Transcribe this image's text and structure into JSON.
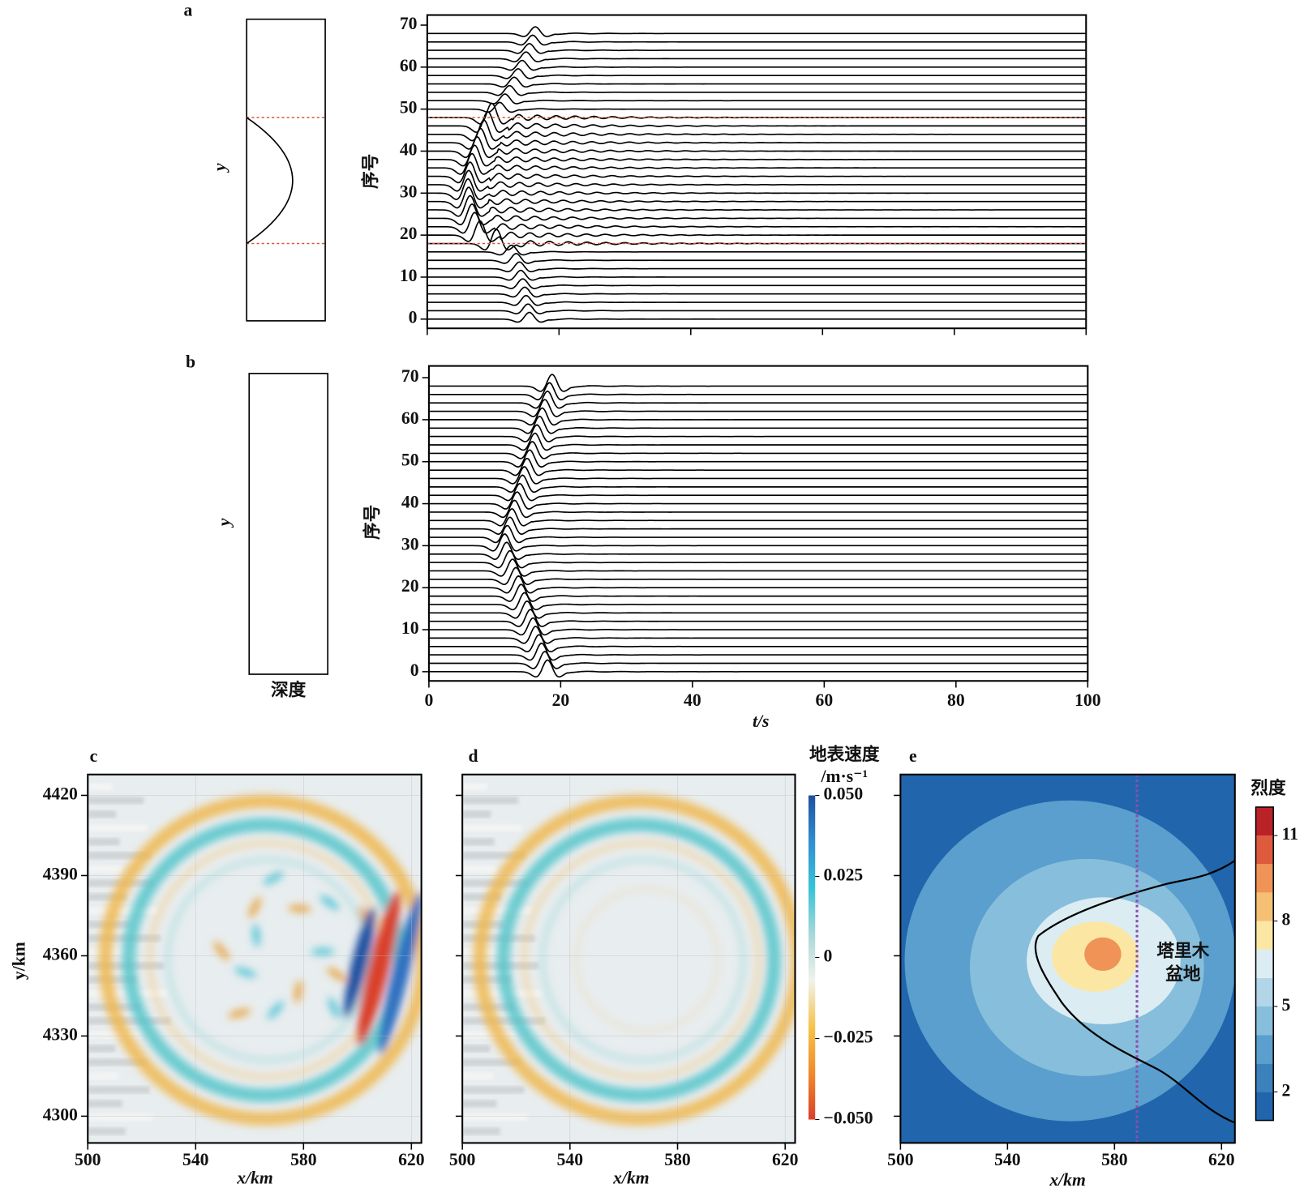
{
  "chart_data": [
    {
      "type": "waveform",
      "panel_label": "a",
      "ylabel": "序号",
      "model_label": "y",
      "model": "basin",
      "xlim": [
        0,
        100
      ],
      "xticks": [
        0,
        20,
        40,
        60,
        80,
        100
      ],
      "show_xtick_labels": false,
      "ylim": [
        -2.2,
        72.4
      ],
      "yticks": [
        0,
        10,
        20,
        30,
        40,
        50,
        60,
        70
      ],
      "hlines": [
        48,
        18
      ],
      "hline_color": "#d9533a",
      "line_color": "#000000",
      "traces": {
        "offsets": [
          0,
          2,
          4,
          6,
          8,
          10,
          12,
          14,
          16,
          18,
          20,
          22,
          24,
          26,
          28,
          30,
          32,
          34,
          36,
          38,
          40,
          42,
          44,
          46,
          48,
          50,
          52,
          54,
          56,
          58,
          60,
          62,
          64,
          66,
          68
        ],
        "arrivals": [
          15.5,
          15.3,
          15.0,
          14.8,
          14.5,
          14.2,
          14.0,
          13.5,
          12.8,
          10.5,
          8.0,
          7.2,
          6.8,
          6.5,
          6.3,
          6.2,
          6.3,
          6.5,
          6.8,
          7.2,
          7.6,
          8.1,
          8.6,
          9.2,
          9.8,
          11.0,
          11.8,
          12.5,
          13.2,
          13.8,
          14.4,
          15.0,
          15.5,
          16.0,
          16.4
        ]
      }
    },
    {
      "type": "waveform",
      "panel_label": "b",
      "ylabel": "序号",
      "model_label": "y",
      "model_xlabel": "深度",
      "model": "uniform",
      "xlabel": "t/s",
      "xlim": [
        0,
        100
      ],
      "xticks": [
        0,
        20,
        40,
        60,
        80,
        100
      ],
      "show_xtick_labels": true,
      "ylim": [
        -2.2,
        72.8
      ],
      "yticks": [
        0,
        10,
        20,
        30,
        40,
        50,
        60,
        70
      ],
      "line_color": "#000000",
      "traces": {
        "offsets": [
          0,
          2,
          4,
          6,
          8,
          10,
          12,
          14,
          16,
          18,
          20,
          22,
          24,
          26,
          28,
          30,
          32,
          34,
          36,
          38,
          40,
          42,
          44,
          46,
          48,
          50,
          52,
          54,
          56,
          58,
          60,
          62,
          64,
          66,
          68
        ],
        "arrivals": [
          18.0,
          17.6,
          17.1,
          16.7,
          16.2,
          15.8,
          15.4,
          14.9,
          14.5,
          14.0,
          13.6,
          13.2,
          12.7,
          12.3,
          11.8,
          11.5,
          11.9,
          12.3,
          12.6,
          13.0,
          13.4,
          13.8,
          14.2,
          14.5,
          14.9,
          15.3,
          15.7,
          16.1,
          16.4,
          16.8,
          17.2,
          17.6,
          18.0,
          18.3,
          18.7
        ]
      }
    },
    {
      "type": "heatmap",
      "panel_label": "c",
      "field": "with-basin",
      "xlabel": "x/km",
      "ylabel": "y/km",
      "grid": true,
      "xlim": [
        500,
        623.7
      ],
      "xticks": [
        500,
        540,
        580,
        620
      ],
      "ylim": [
        4290,
        4427.8
      ],
      "yticks": [
        4300,
        4330,
        4360,
        4390,
        4420
      ],
      "show_ytick_labels": true
    },
    {
      "type": "heatmap",
      "panel_label": "d",
      "field": "without-basin",
      "xlabel": "x/km",
      "grid": true,
      "xlim": [
        500,
        623.7
      ],
      "xticks": [
        500,
        540,
        580,
        620
      ],
      "ylim": [
        4290,
        4427.8
      ],
      "yticks": [
        4300,
        4330,
        4360,
        4390,
        4420
      ],
      "show_ytick_labels": false,
      "colorbar": {
        "title": "地表速度",
        "unit": "/m·s⁻¹",
        "lim": [
          -0.05,
          0.05
        ],
        "ticks": [
          {
            "value": 0.05,
            "label": "0.050"
          },
          {
            "value": 0.025,
            "label": "0.025"
          },
          0,
          {
            "value": -0.025,
            "label": "−0.025"
          },
          {
            "value": -0.05,
            "label": "−0.050"
          }
        ],
        "colors": [
          "#d9402a",
          "#f08a2a",
          "#f6c34a",
          "#f2f2ec",
          "#a8d8d8",
          "#37c3d8",
          "#2f8fd0",
          "#1f4fa0"
        ]
      }
    },
    {
      "type": "contour",
      "panel_label": "e",
      "xlabel": "x/km",
      "xlim": [
        500,
        625
      ],
      "xticks": [
        500,
        540,
        580,
        620
      ],
      "ylim": [
        4290,
        4427.8
      ],
      "yticks": [
        4300,
        4330,
        4360,
        4390,
        4420
      ],
      "show_ytick_labels": false,
      "vline": 588.4,
      "vline_color": "#8a4fb0",
      "annotation": [
        "塔里木",
        "盆地"
      ],
      "colorbar": {
        "title": "烈度",
        "lim": [
          1,
          12
        ],
        "ticks": [
          2,
          5,
          8,
          11
        ],
        "levels": [
          1,
          2,
          3,
          4,
          5,
          6,
          7,
          8,
          9,
          10,
          11,
          12
        ],
        "colors": [
          "#2166ac",
          "#3b82bd",
          "#5a9fcd",
          "#86bedc",
          "#b2d6e8",
          "#dcecf3",
          "#fbe7a3",
          "#f5bf74",
          "#ef9356",
          "#dd5a3c",
          "#b92227"
        ]
      }
    }
  ]
}
